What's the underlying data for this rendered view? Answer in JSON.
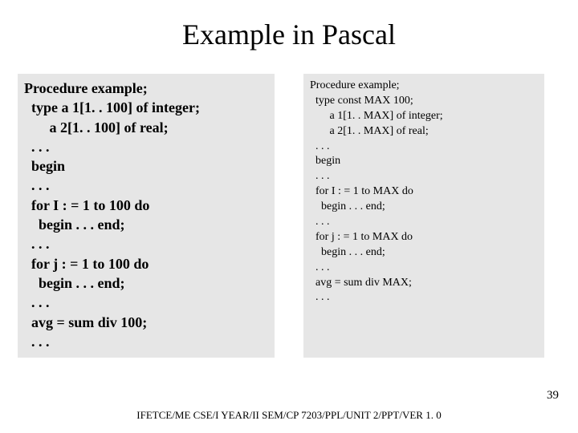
{
  "title": "Example in Pascal",
  "left": {
    "background": "#e6e6e6",
    "fontsize": 18,
    "fontweight": "bold",
    "lines": [
      "Procedure example;",
      "  type a 1[1. . 100] of integer;",
      "       a 2[1. . 100] of real;",
      "  . . .",
      "  begin",
      "  . . .",
      "  for I : = 1 to 100 do",
      "    begin . . . end;",
      "  . . .",
      "  for j : = 1 to 100 do",
      "    begin . . . end;",
      "  . . .",
      "  avg = sum div 100;",
      "  . . ."
    ]
  },
  "right": {
    "background": "#e6e6e6",
    "fontsize": 14,
    "fontweight": "normal",
    "lines": [
      "Procedure example;",
      "  type const MAX 100;",
      "       a 1[1. . MAX] of integer;",
      "       a 2[1. . MAX] of real;",
      "  . . .",
      "  begin",
      "  . . .",
      "  for I : = 1 to MAX do",
      "    begin . . . end;",
      "  . . .",
      "  for j : = 1 to MAX do",
      "    begin . . . end;",
      "  . . .",
      "  avg = sum div MAX;",
      "  . . ."
    ]
  },
  "footer": "IFETCE/ME CSE/I YEAR/II SEM/CP 7203/PPL/UNIT 2/PPT/VER 1. 0",
  "page_number": "39",
  "colors": {
    "background": "#ffffff",
    "text": "#000000",
    "panel": "#e6e6e6"
  }
}
